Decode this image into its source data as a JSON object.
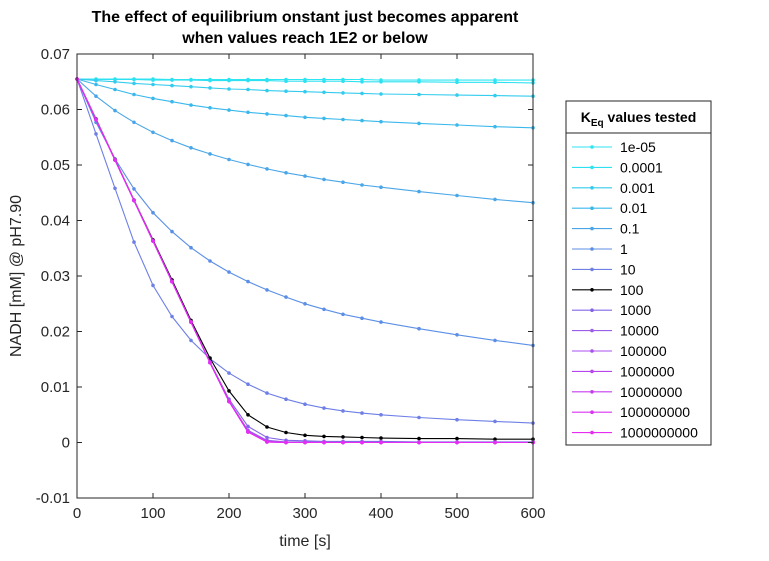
{
  "chart_data": {
    "type": "line",
    "title": [
      "The effect of equilibrium onstant just becomes apparent",
      "when values reach 1E2 or below"
    ],
    "xlabel": "time [s]",
    "ylabel": "NADH [mM] @ pH7.90",
    "xlim": [
      0,
      600
    ],
    "ylim": [
      -0.01,
      0.07
    ],
    "xticks": [
      "0",
      "100",
      "200",
      "300",
      "400",
      "500",
      "600"
    ],
    "yticks": [
      "-0.01",
      "0",
      "0.01",
      "0.02",
      "0.03",
      "0.04",
      "0.05",
      "0.06",
      "0.07"
    ],
    "grid": false,
    "legend_title": {
      "main": "K",
      "sub": "Eq",
      "rest": " values tested"
    },
    "legend_position": "outside-right",
    "x": [
      0,
      25,
      50,
      75,
      100,
      125,
      150,
      175,
      200,
      225,
      250,
      275,
      300,
      325,
      350,
      375,
      400,
      450,
      500,
      550,
      600
    ],
    "series": [
      {
        "name": "1e-05",
        "color": "#2ee6f2",
        "values": [
          0.0655,
          0.0655,
          0.0655,
          0.0655,
          0.0655,
          0.0654,
          0.0654,
          0.0654,
          0.0654,
          0.0654,
          0.0654,
          0.0654,
          0.0654,
          0.0654,
          0.0654,
          0.0654,
          0.0653,
          0.0653,
          0.0653,
          0.0653,
          0.0653
        ]
      },
      {
        "name": "0.0001",
        "color": "#2ee1f2",
        "values": [
          0.0655,
          0.0654,
          0.0654,
          0.0654,
          0.0653,
          0.0653,
          0.0653,
          0.0652,
          0.0652,
          0.0652,
          0.0652,
          0.0651,
          0.0651,
          0.0651,
          0.0651,
          0.065,
          0.065,
          0.065,
          0.0649,
          0.0649,
          0.0648
        ]
      },
      {
        "name": "0.001",
        "color": "#33ccee",
        "values": [
          0.0655,
          0.0652,
          0.065,
          0.0647,
          0.0645,
          0.0643,
          0.0641,
          0.0639,
          0.0637,
          0.0636,
          0.0634,
          0.0633,
          0.0632,
          0.0631,
          0.063,
          0.0629,
          0.0628,
          0.0627,
          0.0626,
          0.0625,
          0.0624
        ]
      },
      {
        "name": "0.01",
        "color": "#3ab8ec",
        "values": [
          0.0655,
          0.0645,
          0.0636,
          0.0627,
          0.062,
          0.0614,
          0.0608,
          0.0603,
          0.0599,
          0.0595,
          0.0592,
          0.0589,
          0.0586,
          0.0584,
          0.0582,
          0.058,
          0.0578,
          0.0575,
          0.0572,
          0.0569,
          0.0567
        ]
      },
      {
        "name": "0.1",
        "color": "#4aa6e8",
        "values": [
          0.0655,
          0.0624,
          0.0598,
          0.0577,
          0.0559,
          0.0544,
          0.0531,
          0.052,
          0.051,
          0.0501,
          0.0493,
          0.0486,
          0.048,
          0.0474,
          0.0469,
          0.0464,
          0.046,
          0.0452,
          0.0445,
          0.0438,
          0.0432
        ]
      },
      {
        "name": "1",
        "color": "#5b8fe6",
        "values": [
          0.0655,
          0.0577,
          0.0511,
          0.0457,
          0.0414,
          0.038,
          0.0351,
          0.0327,
          0.0307,
          0.029,
          0.0275,
          0.0262,
          0.025,
          0.024,
          0.0231,
          0.0224,
          0.0217,
          0.0205,
          0.0194,
          0.0184,
          0.0175
        ]
      },
      {
        "name": "10",
        "color": "#6e7fe6",
        "values": [
          0.0655,
          0.0556,
          0.0458,
          0.0361,
          0.0283,
          0.0227,
          0.0184,
          0.0151,
          0.0125,
          0.0105,
          0.0089,
          0.0078,
          0.0069,
          0.0062,
          0.0057,
          0.0053,
          0.005,
          0.0045,
          0.0041,
          0.0038,
          0.0035
        ]
      },
      {
        "name": "100",
        "color": "#000000",
        "values": [
          0.0655,
          0.0583,
          0.051,
          0.0437,
          0.0365,
          0.0293,
          0.022,
          0.0152,
          0.0093,
          0.005,
          0.0028,
          0.0018,
          0.0013,
          0.0011,
          0.001,
          0.0009,
          0.0008,
          0.0007,
          0.0007,
          0.0006,
          0.0006
        ]
      },
      {
        "name": "1000",
        "color": "#8466e6",
        "values": [
          0.0655,
          0.0582,
          0.0509,
          0.0436,
          0.0363,
          0.029,
          0.0217,
          0.0145,
          0.0078,
          0.0029,
          0.0009,
          0.0004,
          0.0003,
          0.0002,
          0.0002,
          0.0002,
          0.0002,
          0.0001,
          0.0001,
          0.0001,
          0.0001
        ]
      },
      {
        "name": "10000",
        "color": "#9a5ee8",
        "values": [
          0.0655,
          0.0582,
          0.0509,
          0.0436,
          0.0363,
          0.029,
          0.0217,
          0.0144,
          0.0075,
          0.0022,
          0.0004,
          0.0001,
          0.0001,
          0.0001,
          0.0,
          0.0,
          0.0,
          0.0,
          0.0,
          0.0,
          0.0
        ]
      },
      {
        "name": "100000",
        "color": "#a94ff0",
        "values": [
          0.0655,
          0.0582,
          0.0509,
          0.0436,
          0.0363,
          0.029,
          0.0217,
          0.0144,
          0.0074,
          0.002,
          0.0002,
          0.0,
          0.0,
          0.0,
          0.0,
          0.0,
          0.0,
          0.0,
          0.0,
          0.0,
          0.0
        ]
      },
      {
        "name": "1000000",
        "color": "#b844f0",
        "values": [
          0.0655,
          0.0582,
          0.0509,
          0.0436,
          0.0363,
          0.029,
          0.0217,
          0.0144,
          0.0074,
          0.0019,
          0.0002,
          0.0,
          0.0,
          0.0,
          0.0,
          0.0,
          0.0,
          0.0,
          0.0,
          0.0,
          0.0
        ]
      },
      {
        "name": "10000000",
        "color": "#c83cf0",
        "values": [
          0.0655,
          0.0582,
          0.0509,
          0.0436,
          0.0363,
          0.029,
          0.0217,
          0.0144,
          0.0074,
          0.0019,
          0.0001,
          0.0,
          0.0,
          0.0,
          0.0,
          0.0,
          0.0,
          0.0,
          0.0,
          0.0,
          0.0
        ]
      },
      {
        "name": "100000000",
        "color": "#d834f2",
        "values": [
          0.0655,
          0.0582,
          0.0509,
          0.0436,
          0.0363,
          0.029,
          0.0217,
          0.0144,
          0.0074,
          0.0019,
          0.0001,
          0.0,
          0.0,
          0.0,
          0.0,
          0.0,
          0.0,
          0.0,
          0.0,
          0.0,
          0.0
        ]
      },
      {
        "name": "1000000000",
        "color": "#e62cf2",
        "values": [
          0.0655,
          0.0582,
          0.0509,
          0.0436,
          0.0363,
          0.029,
          0.0217,
          0.0144,
          0.0074,
          0.0019,
          0.0001,
          0.0,
          0.0,
          0.0,
          0.0,
          0.0,
          0.0,
          0.0,
          0.0,
          0.0,
          0.0
        ]
      }
    ]
  }
}
